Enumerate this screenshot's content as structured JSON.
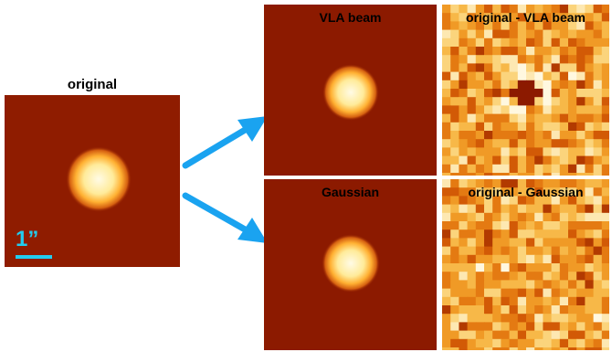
{
  "labels": {
    "original": "original",
    "vla_beam": "VLA beam",
    "residual_vla": "original - VLA beam",
    "gaussian": "Gaussian",
    "residual_gaussian": "original - Gaussian",
    "scale": "1”"
  },
  "colors": {
    "arrow": "#1aa3f0",
    "scale_bar": "#22ccee",
    "image_background": "#8c1a00"
  }
}
